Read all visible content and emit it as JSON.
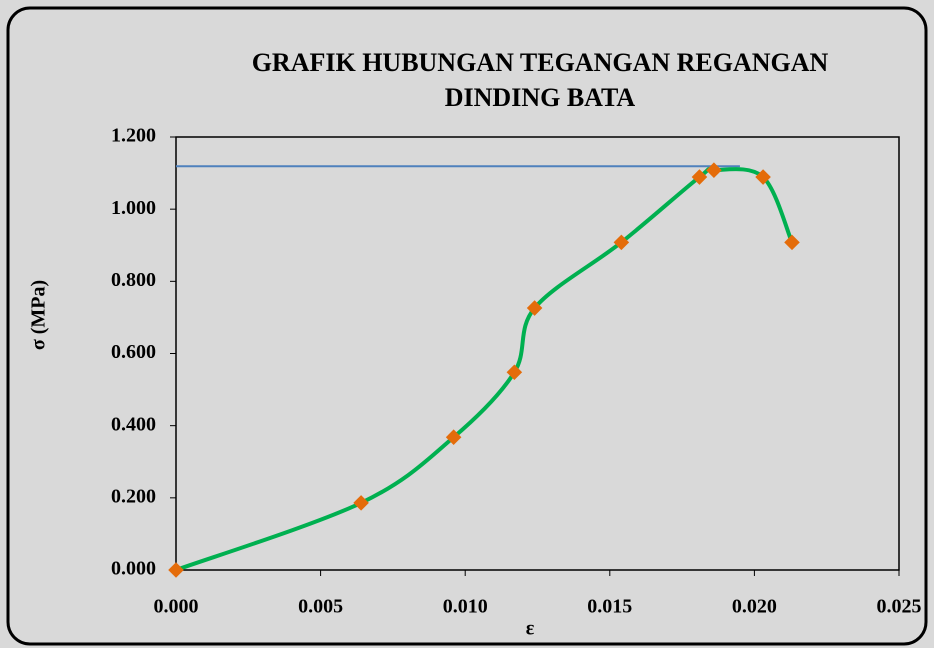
{
  "chart_data": {
    "type": "scatter",
    "title": [
      "GRAFIK HUBUNGAN TEGANGAN REGANGAN",
      "DINDING BATA"
    ],
    "x_label": "ε",
    "y_label": "σ (MPa)",
    "x": [
      0,
      0.0064,
      0.0096,
      0.0117,
      0.0124,
      0.0154,
      0.0181,
      0.0186,
      0.0203,
      0.0213
    ],
    "series": [
      {
        "color": "#00b050",
        "marker_color": "#e46c0a",
        "values": [
          0,
          0.186,
          0.368,
          0.548,
          0.726,
          0.908,
          1.089,
          1.108,
          1.089,
          0.908
        ]
      }
    ],
    "reference_line": {
      "x": [
        0,
        0.0195
      ],
      "y": [
        1.119,
        1.119
      ],
      "color": "#4f81bd"
    },
    "xlim": [
      0,
      0.025
    ],
    "xticks": [
      {
        "value": 0,
        "label": "0.000"
      },
      {
        "value": 0.005,
        "label": "0.005"
      },
      {
        "value": 0.01,
        "label": "0.010"
      },
      {
        "value": 0.015,
        "label": "0.015"
      },
      {
        "value": 0.02,
        "label": "0.020"
      },
      {
        "value": 0.025,
        "label": "0.025"
      }
    ],
    "ylim": [
      0,
      1.2
    ],
    "yticks": [
      {
        "value": 0,
        "label": "0.000"
      },
      {
        "value": 0.2,
        "label": "0.200"
      },
      {
        "value": 0.4,
        "label": "0.400"
      },
      {
        "value": 0.6,
        "label": "0.600"
      },
      {
        "value": 0.8,
        "label": "0.800"
      },
      {
        "value": 1.0,
        "label": "1.000"
      },
      {
        "value": 1.2,
        "label": "1.200"
      }
    ],
    "grid": false
  }
}
